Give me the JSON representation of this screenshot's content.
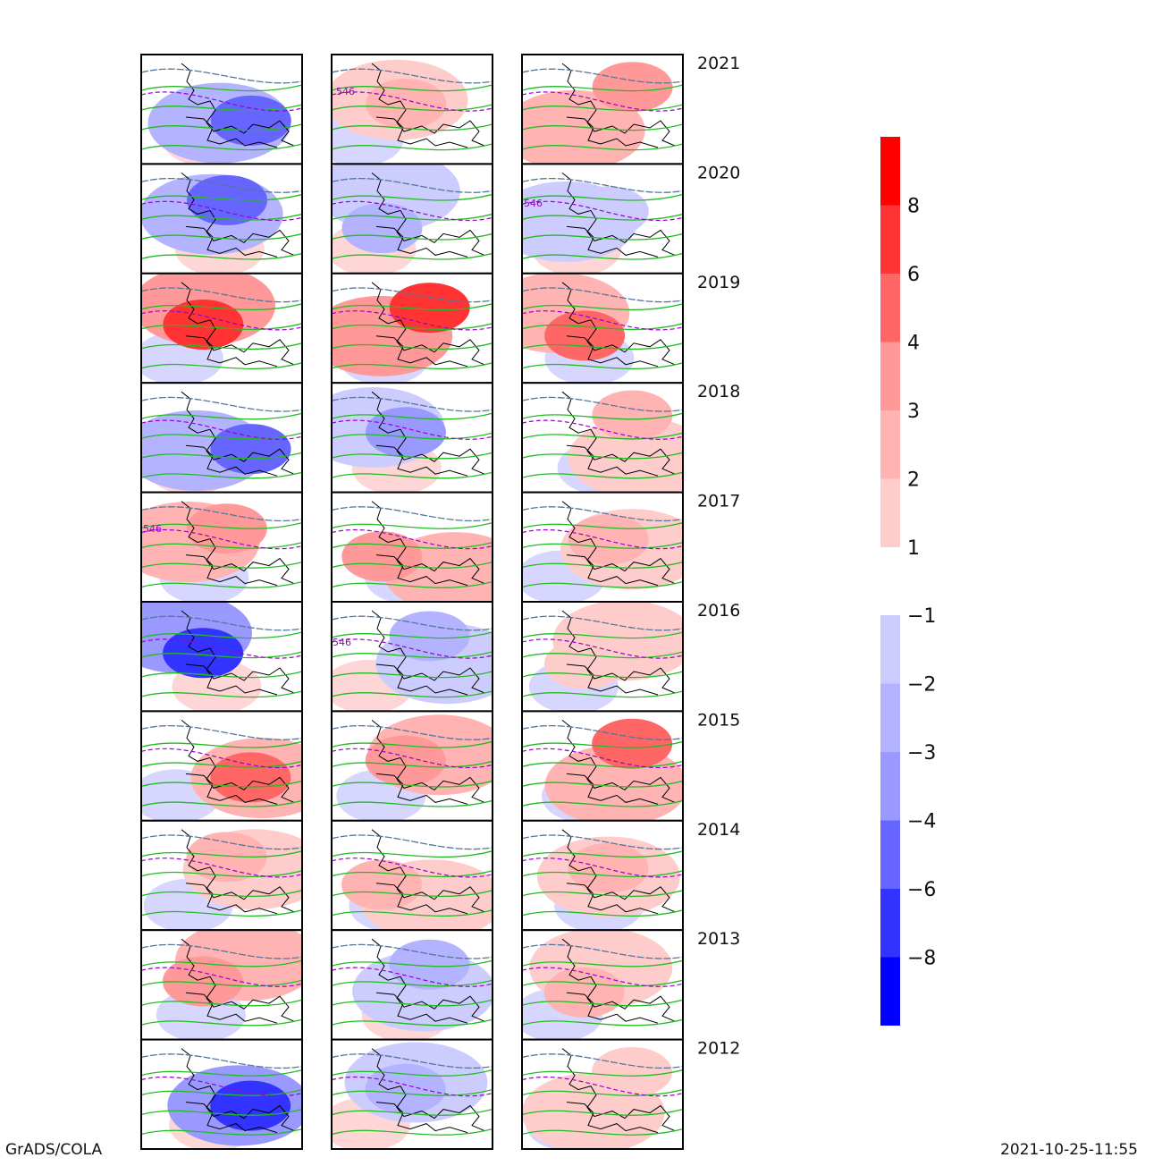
{
  "chart_data": {
    "type": "heatmap",
    "title": "",
    "years": [
      "2021",
      "2020",
      "2019",
      "2018",
      "2017",
      "2016",
      "2015",
      "2014",
      "2013",
      "2012"
    ],
    "columns": 3,
    "map_panels": [
      {
        "year": "2021",
        "anomalies": [
          -4,
          2,
          3
        ]
      },
      {
        "year": "2020",
        "anomalies": [
          -4,
          -2,
          -1
        ]
      },
      {
        "year": "2019",
        "anomalies": [
          6,
          6,
          4
        ]
      },
      {
        "year": "2018",
        "anomalies": [
          -4,
          -3,
          2
        ]
      },
      {
        "year": "2017",
        "anomalies": [
          3,
          3,
          2
        ]
      },
      {
        "year": "2016",
        "anomalies": [
          -6,
          -2,
          1
        ]
      },
      {
        "year": "2015",
        "anomalies": [
          4,
          3,
          4
        ]
      },
      {
        "year": "2014",
        "anomalies": [
          2,
          2,
          2
        ]
      },
      {
        "year": "2013",
        "anomalies": [
          3,
          -2,
          2
        ]
      },
      {
        "year": "2012",
        "anomalies": [
          -6,
          -2,
          1
        ]
      }
    ],
    "contour_label": "546",
    "colorbar": {
      "positive": {
        "labels": [
          "8",
          "6",
          "4",
          "3",
          "2",
          "1"
        ],
        "colors": [
          "#ff0000",
          "#ff3333",
          "#ff6666",
          "#ff9999",
          "#ffb3b3",
          "#ffcccc"
        ]
      },
      "negative": {
        "labels": [
          "-1",
          "-2",
          "-3",
          "-4",
          "-6",
          "-8"
        ],
        "colors": [
          "#ccccff",
          "#b3b3ff",
          "#9999ff",
          "#6666ff",
          "#3333ff",
          "#0000ff"
        ]
      }
    }
  },
  "footer": {
    "left": "GrADS/COLA",
    "right": "2021-10-25-11:55"
  }
}
